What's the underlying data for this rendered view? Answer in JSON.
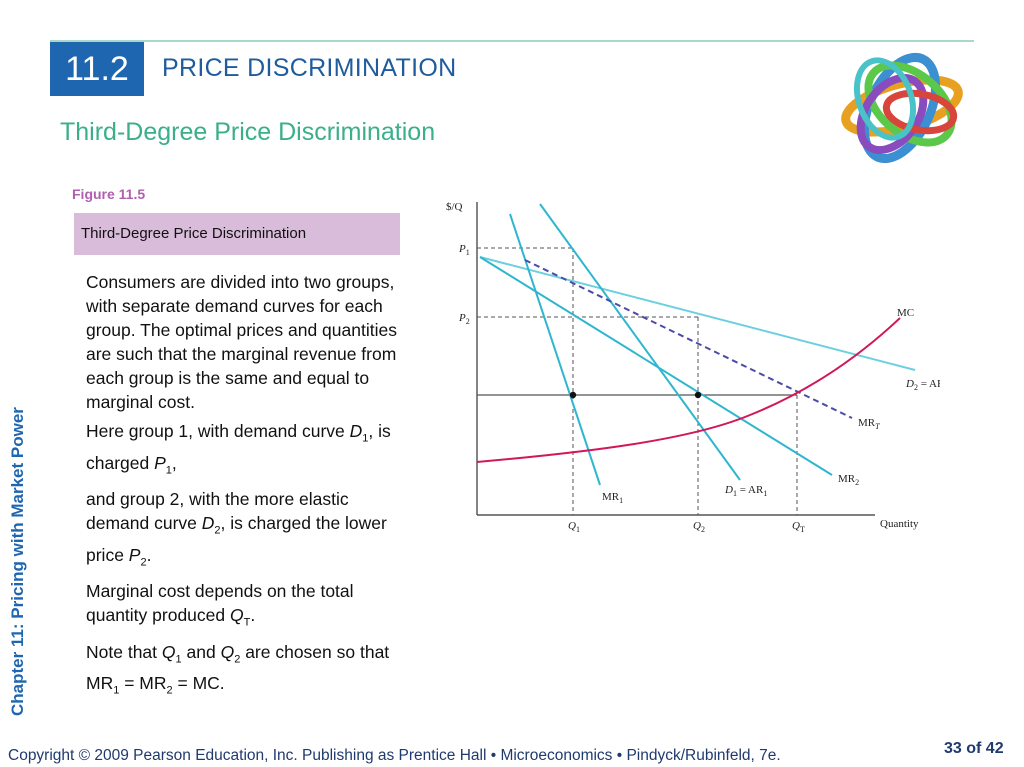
{
  "header": {
    "section_number": "11.2",
    "section_title": "PRICE DISCRIMINATION",
    "slide_title": "Third-Degree Price Discrimination"
  },
  "figure": {
    "label": "Figure 11.5",
    "title": "Third-Degree Price Discrimination"
  },
  "body": {
    "para1": "Consumers are divided into two groups, with separate demand curves for each group. The optimal prices and quantities are such that the marginal revenue from each group is the same and equal to marginal cost.",
    "para2_a": "Here group 1, with demand curve ",
    "para2_d": "D",
    "para2_sub": "1",
    "para2_b": ", is charged ",
    "para2_p": "P",
    "para2_psub": "1",
    "para2_c": ",",
    "para3_a": "and group 2, with the more elastic demand curve ",
    "para3_d": "D",
    "para3_sub": "2",
    "para3_b": ", is charged the lower price ",
    "para3_p": "P",
    "para3_psub": "2",
    "para3_c": ".",
    "para4_a": "Marginal cost depends on the total quantity produced ",
    "para4_q": "Q",
    "para4_sub": "T",
    "para4_c": ".",
    "para5_a": "Note that ",
    "para5_q1": "Q",
    "para5_q1sub": "1",
    "para5_b": " and ",
    "para5_q2": "Q",
    "para5_q2sub": "2",
    "para5_c": " are chosen so that MR",
    "para5_s1": "1",
    "para5_d": " = MR",
    "para5_s2": "2",
    "para5_e": " = MC."
  },
  "diagram": {
    "y_axis": "$/Q",
    "x_axis": "Quantity",
    "p1": "P",
    "p1_sub": "1",
    "p2": "P",
    "p2_sub": "2",
    "q1": "Q",
    "q1_sub": "1",
    "q2": "Q",
    "q2_sub": "2",
    "qt": "Q",
    "qt_sub": "T",
    "mc": "MC",
    "d2": "D",
    "d2_sub": "2",
    "d2_rest": " = AR",
    "d2_rest_sub": "2",
    "mrt": "MR",
    "mrt_sub": "T",
    "mr2": "MR",
    "mr2_sub": "2",
    "d1": "D",
    "d1_sub": "1",
    "d1_rest": " = AR",
    "d1_rest_sub": "1",
    "mr1": "MR",
    "mr1_sub": "1",
    "colors": {
      "demand": "#2fbcd8",
      "mc": "#d0185a",
      "mrt": "#4b4ba8",
      "guides": "#555555"
    }
  },
  "side_label": "Chapter 11: Pricing with Market Power",
  "footer": {
    "copyright": "Copyright © 2009 Pearson Education, Inc. Publishing as Prentice Hall  •  Microeconomics  •  Pindyck/Rubinfeld, 7e.",
    "page": "33 of 42"
  }
}
